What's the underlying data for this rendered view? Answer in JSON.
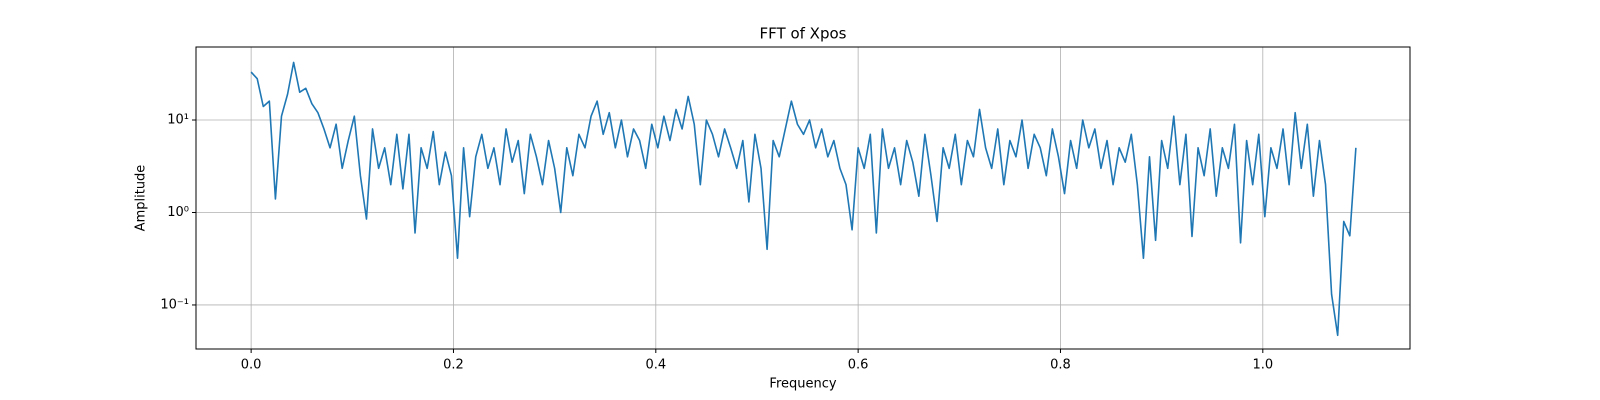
{
  "chart_data": {
    "type": "line",
    "title": "FFT of Xpos",
    "xlabel": "Frequency",
    "ylabel": "Amplitude",
    "x": [
      0,
      0.006,
      0.012,
      0.018,
      0.024,
      0.03,
      0.036,
      0.042,
      0.048,
      0.054,
      0.06,
      0.066,
      0.072,
      0.078,
      0.084,
      0.09,
      0.096,
      0.102,
      0.108,
      0.114,
      0.12,
      0.126,
      0.132,
      0.138,
      0.144,
      0.15,
      0.156,
      0.162,
      0.168,
      0.174,
      0.18,
      0.186,
      0.192,
      0.198,
      0.204,
      0.21,
      0.216,
      0.222,
      0.228,
      0.234,
      0.24,
      0.246,
      0.252,
      0.258,
      0.264,
      0.27,
      0.276,
      0.282,
      0.288,
      0.294,
      0.3,
      0.306,
      0.312,
      0.318,
      0.324,
      0.33,
      0.336,
      0.342,
      0.348,
      0.354,
      0.36,
      0.366,
      0.372,
      0.378,
      0.384,
      0.39,
      0.396,
      0.402,
      0.408,
      0.414,
      0.42,
      0.426,
      0.432,
      0.438,
      0.444,
      0.45,
      0.456,
      0.462,
      0.468,
      0.474,
      0.48,
      0.486,
      0.492,
      0.498,
      0.504,
      0.51,
      0.516,
      0.522,
      0.528,
      0.534,
      0.54,
      0.546,
      0.552,
      0.558,
      0.564,
      0.57,
      0.576,
      0.582,
      0.588,
      0.594,
      0.6,
      0.606,
      0.612,
      0.618,
      0.624,
      0.63,
      0.636,
      0.642,
      0.648,
      0.654,
      0.66,
      0.666,
      0.672,
      0.678,
      0.684,
      0.69,
      0.696,
      0.702,
      0.708,
      0.714,
      0.72,
      0.726,
      0.732,
      0.738,
      0.744,
      0.75,
      0.756,
      0.762,
      0.768,
      0.774,
      0.78,
      0.786,
      0.792,
      0.798,
      0.804,
      0.81,
      0.816,
      0.822,
      0.828,
      0.834,
      0.84,
      0.846,
      0.852,
      0.858,
      0.864,
      0.87,
      0.876,
      0.882,
      0.888,
      0.894,
      0.9,
      0.906,
      0.912,
      0.918,
      0.924,
      0.93,
      0.936,
      0.942,
      0.948,
      0.954,
      0.96,
      0.966,
      0.972,
      0.978,
      0.984,
      0.99,
      0.996,
      1.002,
      1.008,
      1.014,
      1.02,
      1.026,
      1.032,
      1.038,
      1.044,
      1.05,
      1.056,
      1.062,
      1.068,
      1.074,
      1.08,
      1.086,
      1.092
    ],
    "values": [
      33,
      28,
      14,
      16,
      1.4,
      11,
      19,
      42,
      20,
      22,
      15,
      12,
      8,
      5,
      9,
      3,
      6,
      11,
      2.5,
      0.85,
      8,
      3,
      5,
      2,
      7,
      1.8,
      7,
      0.6,
      5,
      3,
      7.5,
      2,
      4.5,
      2.5,
      0.32,
      5,
      0.9,
      4,
      7,
      3,
      5,
      2,
      8,
      3.5,
      6,
      1.6,
      7,
      4,
      2,
      6,
      3,
      1,
      5,
      2.5,
      7,
      5,
      11,
      16,
      7,
      12,
      5,
      10,
      4,
      8,
      6,
      3,
      9,
      5,
      11,
      6,
      13,
      8,
      18,
      9,
      2,
      10,
      7,
      4,
      8,
      5,
      3,
      6,
      1.3,
      7,
      3,
      0.4,
      6,
      4,
      8,
      16,
      9,
      7,
      10,
      5,
      8,
      4,
      6,
      3,
      2,
      0.65,
      5,
      3,
      7,
      0.6,
      8,
      3,
      5,
      2,
      6,
      3.5,
      1.5,
      7,
      2.5,
      0.8,
      5,
      3,
      7,
      2,
      6,
      4,
      13,
      5,
      3,
      8,
      2,
      6,
      4,
      10,
      3,
      7,
      5,
      2.5,
      8,
      4,
      1.6,
      6,
      3,
      10,
      5,
      8,
      3,
      6,
      2,
      5,
      3.5,
      7,
      2,
      0.32,
      4,
      0.5,
      6,
      3,
      11,
      2,
      7,
      0.55,
      5,
      2.5,
      8,
      1.5,
      5,
      3,
      9,
      0.47,
      6,
      2,
      7,
      0.9,
      5,
      3,
      8,
      2,
      12,
      3,
      9,
      1.5,
      6,
      2,
      0.13,
      0.047,
      0.8,
      0.56,
      5
    ],
    "color": "#1f77b4",
    "xlim": [
      -0.0545,
      1.1455
    ],
    "xticks": [
      {
        "value": 0,
        "label": "0.0"
      },
      0.2,
      0.4,
      0.6,
      0.8,
      {
        "value": 1,
        "label": "1.0"
      }
    ],
    "ylim": [
      0.0334,
      61.6
    ],
    "yscale": "log",
    "yticks": [
      {
        "value": 0.1,
        "label": "10⁻¹"
      },
      {
        "value": 1,
        "label": "10⁰"
      },
      {
        "value": 10,
        "label": "10¹"
      }
    ],
    "grid": true
  }
}
